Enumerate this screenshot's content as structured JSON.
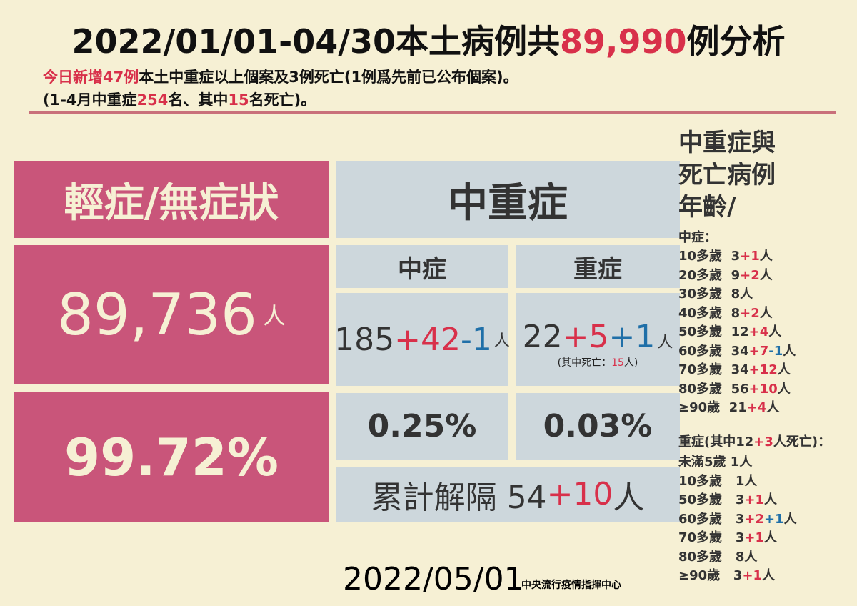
{
  "header": {
    "title": [
      {
        "text": "2022/01/01-04/30本土病例共",
        "color": "#111111"
      },
      {
        "text": "89,990",
        "color": "#d8304a"
      },
      {
        "text": "例分析",
        "color": "#111111"
      }
    ],
    "line1": [
      {
        "text": "今日新增47例",
        "color": "#d8304a"
      },
      {
        "text": "本土中重症以上個案及3例死亡(1例爲先前已公布個案)。",
        "color": "#111111"
      }
    ],
    "line2": [
      {
        "text": "(1-4月中重症",
        "color": "#111111"
      },
      {
        "text": "254",
        "color": "#d8304a"
      },
      {
        "text": "名、其中",
        "color": "#111111"
      },
      {
        "text": "15",
        "color": "#d8304a"
      },
      {
        "text": "名死亡)。",
        "color": "#111111"
      }
    ]
  },
  "mild": {
    "label": "輕症/無症狀",
    "count": "89,736",
    "unit": "人",
    "percent": "99.72%"
  },
  "severe_group": {
    "heading": "中重症",
    "moderate_label": "中症",
    "severe_label": "重症",
    "moderate_count": [
      {
        "text": "185",
        "color": "#333333"
      },
      {
        "text": "+42",
        "color": "#d8304a"
      },
      {
        "text": "-1",
        "color": "#1f6fa8"
      }
    ],
    "moderate_unit": "人",
    "severe_count": [
      {
        "text": "22",
        "color": "#333333"
      },
      {
        "text": "+5",
        "color": "#d8304a"
      },
      {
        "text": "+1",
        "color": "#1f6fa8"
      }
    ],
    "severe_unit": "人",
    "severe_note": [
      {
        "text": "(其中死亡：",
        "color": "#222222"
      },
      {
        "text": "15",
        "color": "#d8304a"
      },
      {
        "text": "人)",
        "color": "#222222"
      }
    ],
    "moderate_percent": "0.25%",
    "severe_percent": "0.03%",
    "released": [
      {
        "text": "累計解隔 54",
        "color": "#333333"
      },
      {
        "text": "+10",
        "color": "#d8304a"
      },
      {
        "text": "人",
        "color": "#333333"
      }
    ]
  },
  "side": {
    "title": [
      "中重症與",
      "死亡病例",
      "年齡/"
    ],
    "moderate_heading": "中症：",
    "moderate_rows": [
      [
        {
          "text": "10多歲  3",
          "color": "#333333"
        },
        {
          "text": "+1",
          "color": "#d8304a"
        },
        {
          "text": "人",
          "color": "#333333"
        }
      ],
      [
        {
          "text": "20多歲  9",
          "color": "#333333"
        },
        {
          "text": "+2",
          "color": "#d8304a"
        },
        {
          "text": "人",
          "color": "#333333"
        }
      ],
      [
        {
          "text": "30多歲  8人",
          "color": "#333333"
        }
      ],
      [
        {
          "text": "40多歲  8",
          "color": "#333333"
        },
        {
          "text": "+2",
          "color": "#d8304a"
        },
        {
          "text": "人",
          "color": "#333333"
        }
      ],
      [
        {
          "text": "50多歲  12",
          "color": "#333333"
        },
        {
          "text": "+4",
          "color": "#d8304a"
        },
        {
          "text": "人",
          "color": "#333333"
        }
      ],
      [
        {
          "text": "60多歲  34",
          "color": "#333333"
        },
        {
          "text": "+7",
          "color": "#d8304a"
        },
        {
          "text": "-1",
          "color": "#1f6fa8"
        },
        {
          "text": "人",
          "color": "#333333"
        }
      ],
      [
        {
          "text": "70多歲  34",
          "color": "#333333"
        },
        {
          "text": "+12",
          "color": "#d8304a"
        },
        {
          "text": "人",
          "color": "#333333"
        }
      ],
      [
        {
          "text": "80多歲  56",
          "color": "#333333"
        },
        {
          "text": "+10",
          "color": "#d8304a"
        },
        {
          "text": "人",
          "color": "#333333"
        }
      ],
      [
        {
          "text": "≥90歲  21",
          "color": "#333333"
        },
        {
          "text": "+4",
          "color": "#d8304a"
        },
        {
          "text": "人",
          "color": "#333333"
        }
      ]
    ],
    "severe_heading": [
      {
        "text": "重症(其中12",
        "color": "#333333"
      },
      {
        "text": "+3",
        "color": "#d8304a"
      },
      {
        "text": "人死亡)：",
        "color": "#333333"
      }
    ],
    "severe_rows": [
      [
        {
          "text": "未滿5歲 1人",
          "color": "#333333"
        }
      ],
      [
        {
          "text": "10多歲   1人",
          "color": "#333333"
        }
      ],
      [
        {
          "text": "50多歲   3",
          "color": "#333333"
        },
        {
          "text": "+1",
          "color": "#d8304a"
        },
        {
          "text": "人",
          "color": "#333333"
        }
      ],
      [
        {
          "text": "60多歲   3",
          "color": "#333333"
        },
        {
          "text": "+2",
          "color": "#d8304a"
        },
        {
          "text": "+1",
          "color": "#1f6fa8"
        },
        {
          "text": "人",
          "color": "#333333"
        }
      ],
      [
        {
          "text": "70多歲   3",
          "color": "#333333"
        },
        {
          "text": "+1",
          "color": "#d8304a"
        },
        {
          "text": "人",
          "color": "#333333"
        }
      ],
      [
        {
          "text": "80多歲   8人",
          "color": "#333333"
        }
      ],
      [
        {
          "text": "≥90歲   3",
          "color": "#333333"
        },
        {
          "text": "+1",
          "color": "#d8304a"
        },
        {
          "text": "人",
          "color": "#333333"
        }
      ]
    ]
  },
  "footer": {
    "date": "2022/05/01",
    "org": "中央流行疫情指揮中心"
  }
}
